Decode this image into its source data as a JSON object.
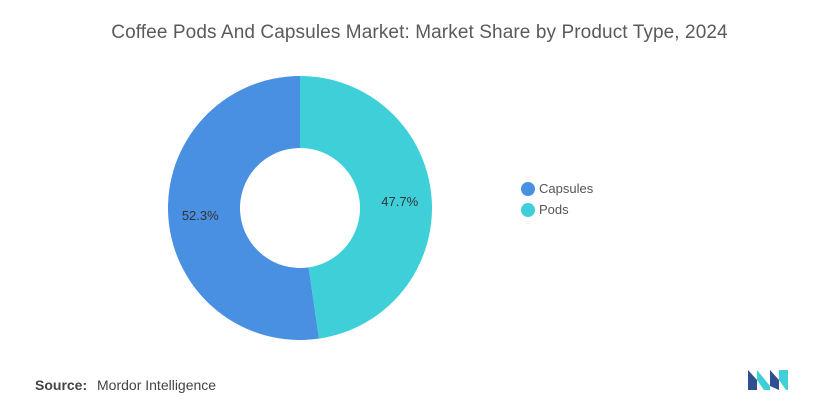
{
  "chart_data": {
    "type": "pie",
    "donut": true,
    "title": "Coffee Pods And Capsules Market: Market Share by Product Type, 2024",
    "categories": [
      "Capsules",
      "Pods"
    ],
    "values": [
      52.3,
      47.7
    ],
    "data_labels": [
      "52.3%",
      "47.7%"
    ],
    "colors": [
      "#4a90e2",
      "#3fcfd9"
    ],
    "legend_position": "right"
  },
  "source": {
    "label": "Source:",
    "value": "Mordor Intelligence"
  },
  "logo": {
    "icon": "mordor-intelligence-logo",
    "colors": [
      "#2f4f8f",
      "#3fcfd9"
    ]
  }
}
